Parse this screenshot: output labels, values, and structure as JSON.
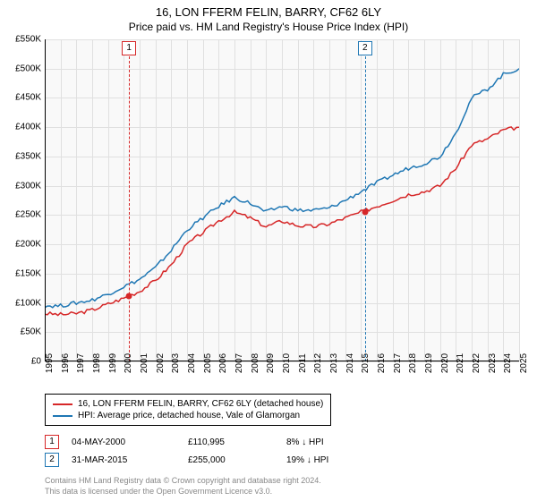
{
  "title": "16, LON FFERM FELIN, BARRY, CF62 6LY",
  "subtitle": "Price paid vs. HM Land Registry's House Price Index (HPI)",
  "chart": {
    "type": "line",
    "background_color": "#f9f9f9",
    "grid_color": "#e0e0e0",
    "y": {
      "min": 0,
      "max": 550000,
      "step": 50000,
      "labels": [
        "£0",
        "£50K",
        "£100K",
        "£150K",
        "£200K",
        "£250K",
        "£300K",
        "£350K",
        "£400K",
        "£450K",
        "£500K",
        "£550K"
      ]
    },
    "x": {
      "min": 1995,
      "max": 2025,
      "step": 1,
      "labels": [
        "1995",
        "1996",
        "1997",
        "1998",
        "1999",
        "2000",
        "2001",
        "2002",
        "2003",
        "2004",
        "2005",
        "2006",
        "2007",
        "2008",
        "2009",
        "2010",
        "2011",
        "2012",
        "2013",
        "2014",
        "2015",
        "2016",
        "2017",
        "2018",
        "2019",
        "2020",
        "2021",
        "2022",
        "2023",
        "2024",
        "2025"
      ]
    },
    "series": [
      {
        "name": "property",
        "color": "#d62728",
        "width": 1.5,
        "points": [
          [
            1995,
            82000
          ],
          [
            1996,
            80000
          ],
          [
            1997,
            82000
          ],
          [
            1998,
            88000
          ],
          [
            1999,
            98000
          ],
          [
            2000,
            108000
          ],
          [
            2001,
            120000
          ],
          [
            2002,
            138000
          ],
          [
            2003,
            165000
          ],
          [
            2004,
            200000
          ],
          [
            2005,
            220000
          ],
          [
            2006,
            240000
          ],
          [
            2007,
            255000
          ],
          [
            2008,
            245000
          ],
          [
            2009,
            230000
          ],
          [
            2010,
            240000
          ],
          [
            2011,
            232000
          ],
          [
            2012,
            230000
          ],
          [
            2013,
            235000
          ],
          [
            2014,
            245000
          ],
          [
            2015,
            255000
          ],
          [
            2016,
            265000
          ],
          [
            2017,
            275000
          ],
          [
            2018,
            285000
          ],
          [
            2019,
            290000
          ],
          [
            2020,
            300000
          ],
          [
            2021,
            330000
          ],
          [
            2022,
            370000
          ],
          [
            2023,
            380000
          ],
          [
            2024,
            395000
          ],
          [
            2025,
            400000
          ]
        ]
      },
      {
        "name": "hpi",
        "color": "#1f77b4",
        "width": 1.5,
        "points": [
          [
            1995,
            95000
          ],
          [
            1996,
            95000
          ],
          [
            1997,
            100000
          ],
          [
            1998,
            105000
          ],
          [
            1999,
            115000
          ],
          [
            2000,
            128000
          ],
          [
            2001,
            140000
          ],
          [
            2002,
            160000
          ],
          [
            2003,
            190000
          ],
          [
            2004,
            225000
          ],
          [
            2005,
            245000
          ],
          [
            2006,
            265000
          ],
          [
            2007,
            280000
          ],
          [
            2008,
            270000
          ],
          [
            2009,
            255000
          ],
          [
            2010,
            265000
          ],
          [
            2011,
            258000
          ],
          [
            2012,
            258000
          ],
          [
            2013,
            262000
          ],
          [
            2014,
            275000
          ],
          [
            2015,
            290000
          ],
          [
            2016,
            305000
          ],
          [
            2017,
            318000
          ],
          [
            2018,
            330000
          ],
          [
            2019,
            338000
          ],
          [
            2020,
            350000
          ],
          [
            2021,
            390000
          ],
          [
            2022,
            450000
          ],
          [
            2023,
            465000
          ],
          [
            2024,
            490000
          ],
          [
            2025,
            500000
          ]
        ]
      }
    ],
    "sale_markers": [
      {
        "n": 1,
        "x": 2000.33,
        "y": 110995,
        "color": "#d62728"
      },
      {
        "n": 2,
        "x": 2015.25,
        "y": 255000,
        "color": "#1f77b4"
      }
    ]
  },
  "legend": {
    "items": [
      {
        "color": "#d62728",
        "label": "16, LON FFERM FELIN, BARRY, CF62 6LY (detached house)"
      },
      {
        "color": "#1f77b4",
        "label": "HPI: Average price, detached house, Vale of Glamorgan"
      }
    ]
  },
  "sales": [
    {
      "n": 1,
      "color": "#d62728",
      "date": "04-MAY-2000",
      "price": "£110,995",
      "diff": "8% ↓ HPI"
    },
    {
      "n": 2,
      "color": "#1f77b4",
      "date": "31-MAR-2015",
      "price": "£255,000",
      "diff": "19% ↓ HPI"
    }
  ],
  "footer": {
    "line1": "Contains HM Land Registry data © Crown copyright and database right 2024.",
    "line2": "This data is licensed under the Open Government Licence v3.0."
  }
}
